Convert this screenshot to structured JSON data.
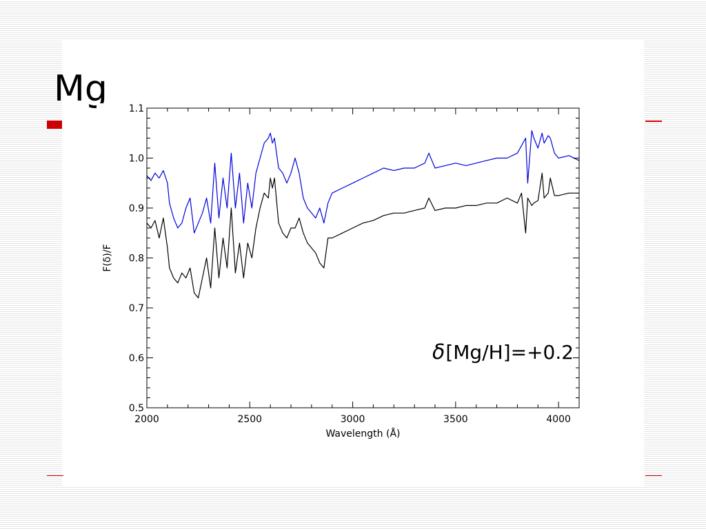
{
  "slide": {
    "title": "Mg"
  },
  "colors": {
    "accent": "#cc0000",
    "series_blue": "#0000dd",
    "series_black": "#000000"
  },
  "chart_data": {
    "type": "line",
    "title": "",
    "xlabel": "Wavelength (Å)",
    "ylabel": "F(δ)/F",
    "xlim": [
      2000,
      4100
    ],
    "ylim": [
      0.5,
      1.1
    ],
    "x_ticks": [
      2000,
      2500,
      3000,
      3500,
      4000
    ],
    "x_tick_labels": [
      "2000",
      "2500",
      "3000",
      "3500",
      "4000"
    ],
    "y_ticks": [
      0.5,
      0.6,
      0.7,
      0.8,
      0.9,
      1.0,
      1.1
    ],
    "y_tick_labels": [
      "0.5",
      "0.6",
      "0.7",
      "0.8",
      "0.9",
      "1.0",
      "1.1"
    ],
    "grid": false,
    "legend": "none",
    "annotation": {
      "symbol": "δ",
      "text": "[Mg/H]=+0.2",
      "x": 3850,
      "y": 0.613
    },
    "series": [
      {
        "color": "#0000dd",
        "x": [
          2000,
          2020,
          2040,
          2060,
          2080,
          2100,
          2110,
          2130,
          2150,
          2170,
          2190,
          2210,
          2230,
          2250,
          2270,
          2290,
          2310,
          2330,
          2350,
          2370,
          2390,
          2410,
          2430,
          2450,
          2470,
          2490,
          2510,
          2530,
          2550,
          2570,
          2590,
          2600,
          2610,
          2620,
          2640,
          2660,
          2680,
          2700,
          2720,
          2740,
          2760,
          2780,
          2800,
          2820,
          2840,
          2860,
          2880,
          2900,
          2950,
          3000,
          3050,
          3100,
          3150,
          3200,
          3250,
          3300,
          3350,
          3370,
          3400,
          3450,
          3500,
          3550,
          3600,
          3650,
          3700,
          3750,
          3800,
          3820,
          3840,
          3850,
          3870,
          3880,
          3900,
          3920,
          3930,
          3950,
          3960,
          3980,
          4000,
          4050,
          4100
        ],
        "y": [
          0.965,
          0.955,
          0.97,
          0.96,
          0.975,
          0.95,
          0.91,
          0.88,
          0.86,
          0.87,
          0.9,
          0.92,
          0.85,
          0.87,
          0.89,
          0.92,
          0.87,
          0.99,
          0.88,
          0.96,
          0.9,
          1.01,
          0.9,
          0.97,
          0.87,
          0.95,
          0.9,
          0.97,
          1.0,
          1.03,
          1.04,
          1.05,
          1.03,
          1.04,
          0.98,
          0.97,
          0.95,
          0.97,
          1.0,
          0.97,
          0.92,
          0.9,
          0.89,
          0.88,
          0.9,
          0.87,
          0.91,
          0.93,
          0.94,
          0.95,
          0.96,
          0.97,
          0.98,
          0.975,
          0.98,
          0.98,
          0.99,
          1.01,
          0.98,
          0.985,
          0.99,
          0.985,
          0.99,
          0.995,
          1.0,
          1.0,
          1.01,
          1.025,
          1.04,
          0.95,
          1.055,
          1.04,
          1.02,
          1.05,
          1.03,
          1.045,
          1.04,
          1.01,
          1.0,
          1.005,
          0.995
        ]
      },
      {
        "color": "#000000",
        "x": [
          2000,
          2020,
          2040,
          2060,
          2080,
          2100,
          2110,
          2130,
          2150,
          2170,
          2190,
          2210,
          2230,
          2250,
          2270,
          2290,
          2310,
          2330,
          2350,
          2370,
          2390,
          2410,
          2430,
          2450,
          2470,
          2490,
          2510,
          2530,
          2550,
          2570,
          2590,
          2600,
          2610,
          2620,
          2640,
          2660,
          2680,
          2700,
          2720,
          2740,
          2760,
          2780,
          2800,
          2820,
          2840,
          2860,
          2880,
          2900,
          2950,
          3000,
          3050,
          3100,
          3150,
          3200,
          3250,
          3300,
          3350,
          3370,
          3400,
          3450,
          3500,
          3550,
          3600,
          3650,
          3700,
          3750,
          3800,
          3820,
          3840,
          3850,
          3870,
          3880,
          3900,
          3920,
          3930,
          3950,
          3960,
          3980,
          4000,
          4050,
          4100
        ],
        "y": [
          0.87,
          0.86,
          0.875,
          0.84,
          0.88,
          0.82,
          0.78,
          0.76,
          0.75,
          0.77,
          0.76,
          0.78,
          0.73,
          0.72,
          0.76,
          0.8,
          0.74,
          0.86,
          0.76,
          0.84,
          0.78,
          0.9,
          0.77,
          0.83,
          0.76,
          0.83,
          0.8,
          0.86,
          0.9,
          0.93,
          0.92,
          0.96,
          0.94,
          0.96,
          0.87,
          0.85,
          0.84,
          0.86,
          0.86,
          0.88,
          0.85,
          0.83,
          0.82,
          0.81,
          0.79,
          0.78,
          0.84,
          0.84,
          0.85,
          0.86,
          0.87,
          0.875,
          0.885,
          0.89,
          0.89,
          0.895,
          0.9,
          0.92,
          0.895,
          0.9,
          0.9,
          0.905,
          0.905,
          0.91,
          0.91,
          0.92,
          0.91,
          0.93,
          0.85,
          0.92,
          0.905,
          0.91,
          0.915,
          0.97,
          0.92,
          0.93,
          0.96,
          0.925,
          0.925,
          0.93,
          0.93
        ]
      }
    ]
  }
}
